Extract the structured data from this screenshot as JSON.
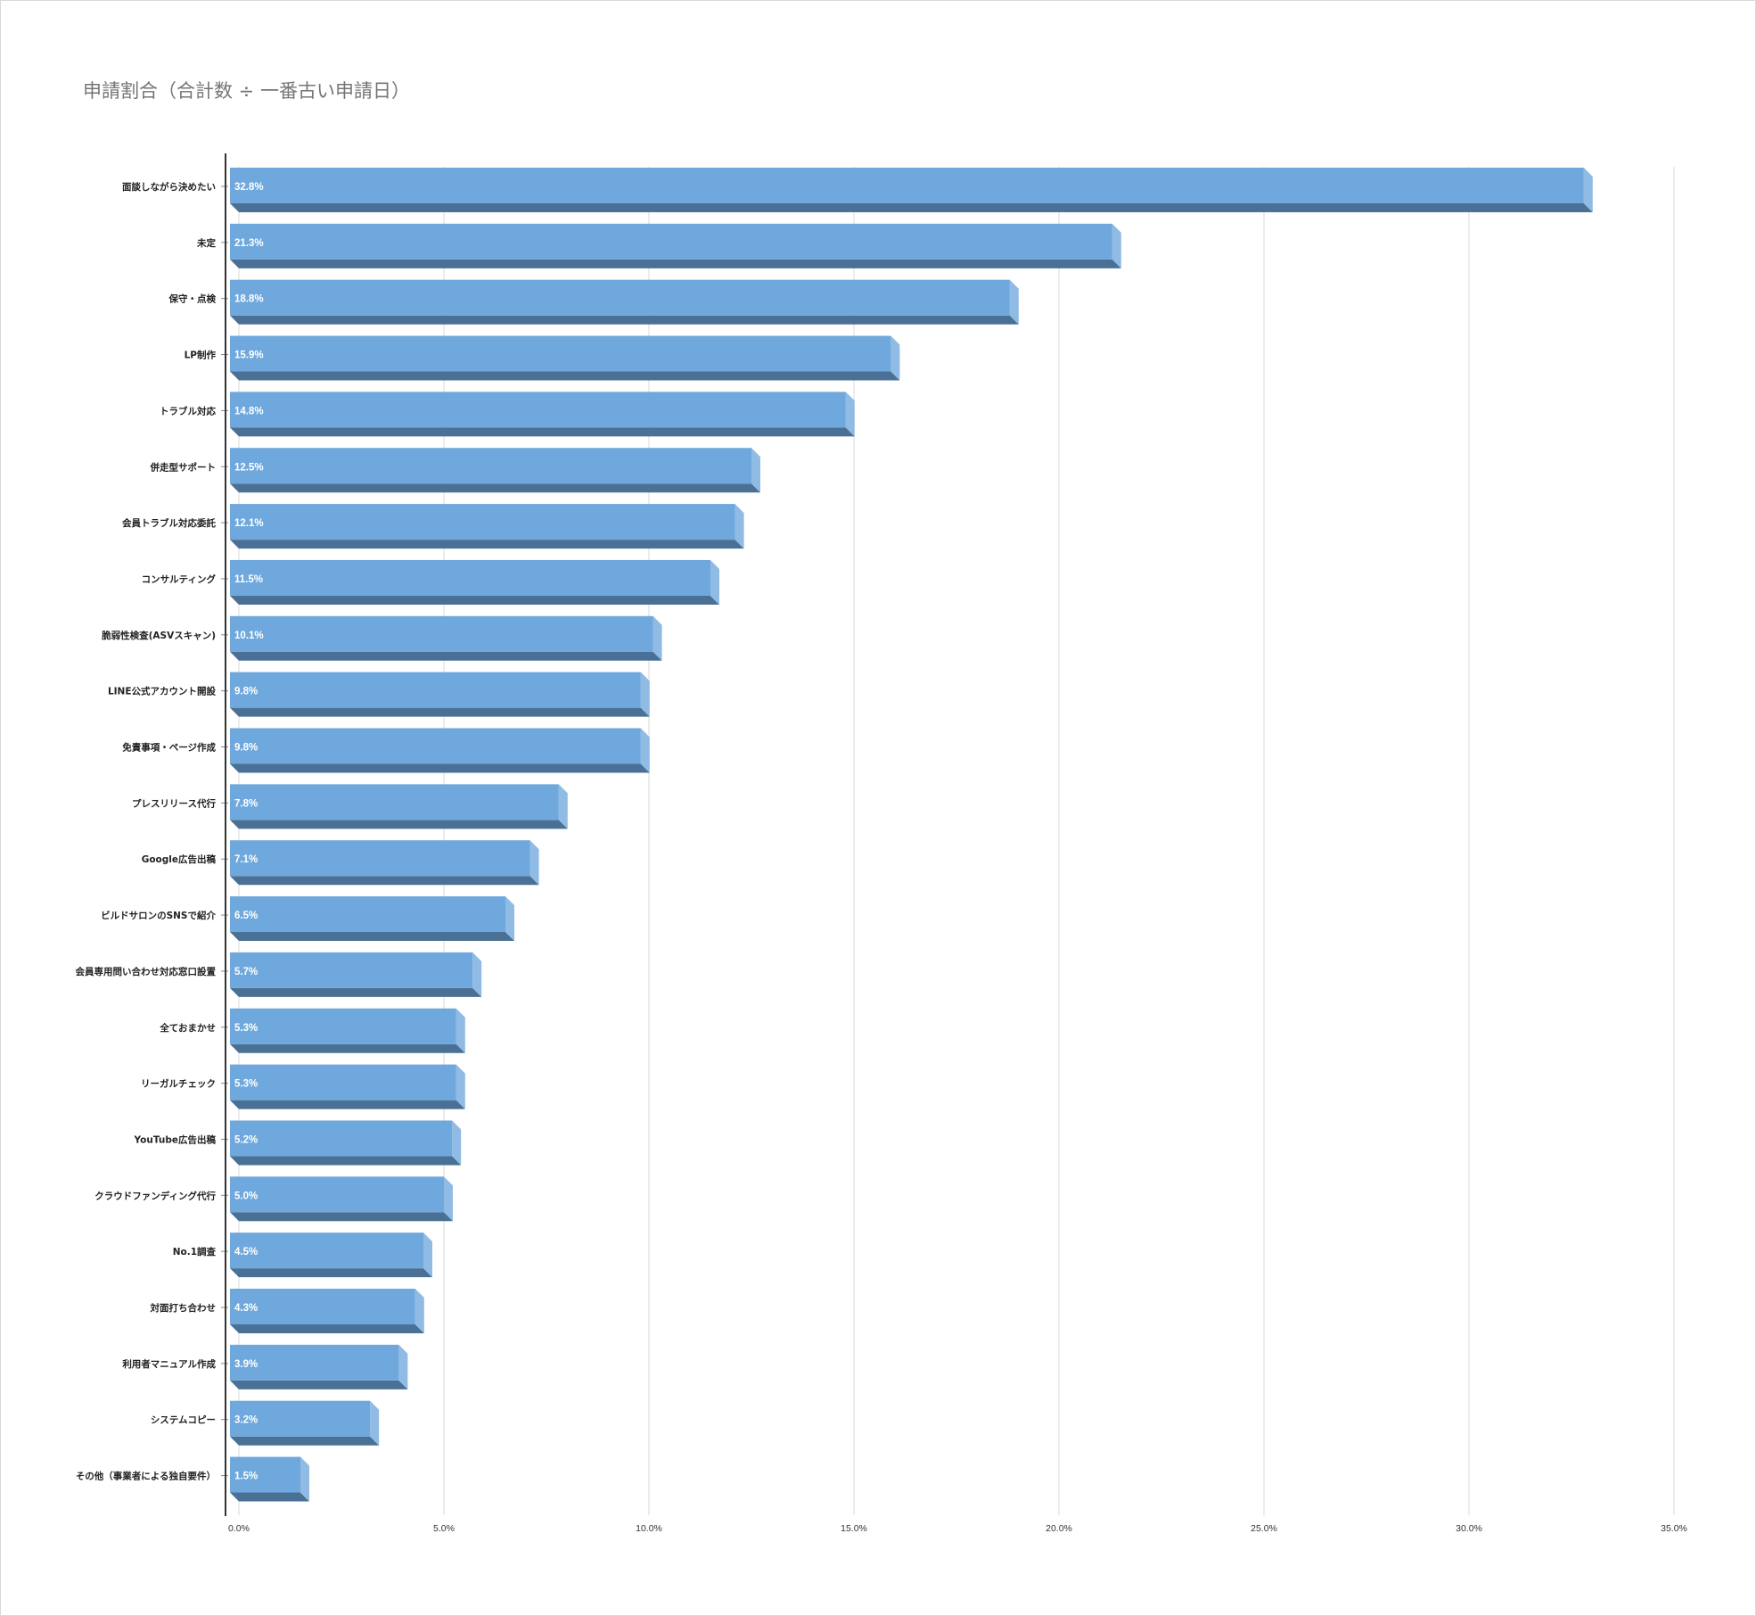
{
  "chart_data": {
    "type": "bar",
    "orientation": "horizontal",
    "title": "申請割合（合計数 ÷ 一番古い申請日）",
    "categories": [
      "面談しながら決めたい",
      "未定",
      "保守・点検",
      "LP制作",
      "トラブル対応",
      "併走型サポート",
      "会員トラブル対応委託",
      "コンサルティング",
      "脆弱性検査(ASVスキャン)",
      "LINE公式アカウント開設",
      "免責事項・ページ作成",
      "プレスリリース代行",
      "Google広告出稿",
      "ビルドサロンのSNSで紹介",
      "会員専用問い合わせ対応窓口設置",
      "全ておまかせ",
      "リーガルチェック",
      "YouTube広告出稿",
      "クラウドファンディング代行",
      "No.1調査",
      "対面打ち合わせ",
      "利用者マニュアル作成",
      "システムコピー",
      "その他（事業者による独自要件）"
    ],
    "values": [
      32.8,
      21.3,
      18.8,
      15.9,
      14.8,
      12.5,
      12.1,
      11.5,
      10.1,
      9.8,
      9.8,
      7.8,
      7.1,
      6.5,
      5.7,
      5.3,
      5.3,
      5.2,
      5.0,
      4.5,
      4.3,
      3.9,
      3.2,
      1.5
    ],
    "data_labels": [
      "32.8%",
      "21.3%",
      "18.8%",
      "15.9%",
      "14.8%",
      "12.5%",
      "12.1%",
      "11.5%",
      "10.1%",
      "9.8%",
      "9.8%",
      "7.8%",
      "7.1%",
      "6.5%",
      "5.7%",
      "5.3%",
      "5.3%",
      "5.2%",
      "5.0%",
      "4.5%",
      "4.3%",
      "3.9%",
      "3.2%",
      "1.5%"
    ],
    "x_ticks": [
      0,
      5,
      10,
      15,
      20,
      25,
      30,
      35
    ],
    "x_tick_labels": [
      "0.0%",
      "5.0%",
      "10.0%",
      "15.0%",
      "20.0%",
      "25.0%",
      "30.0%",
      "35.0%"
    ],
    "xlim": [
      0,
      35
    ],
    "grid": true,
    "legend": "none",
    "style": "3d",
    "colors": {
      "bar_front": "#6fa8dc",
      "bar_bottom": "#4a7195",
      "bar_side": "#8fbbe4",
      "grid": "#d9d9d9",
      "axis": "#333333",
      "title": "#757575"
    }
  }
}
